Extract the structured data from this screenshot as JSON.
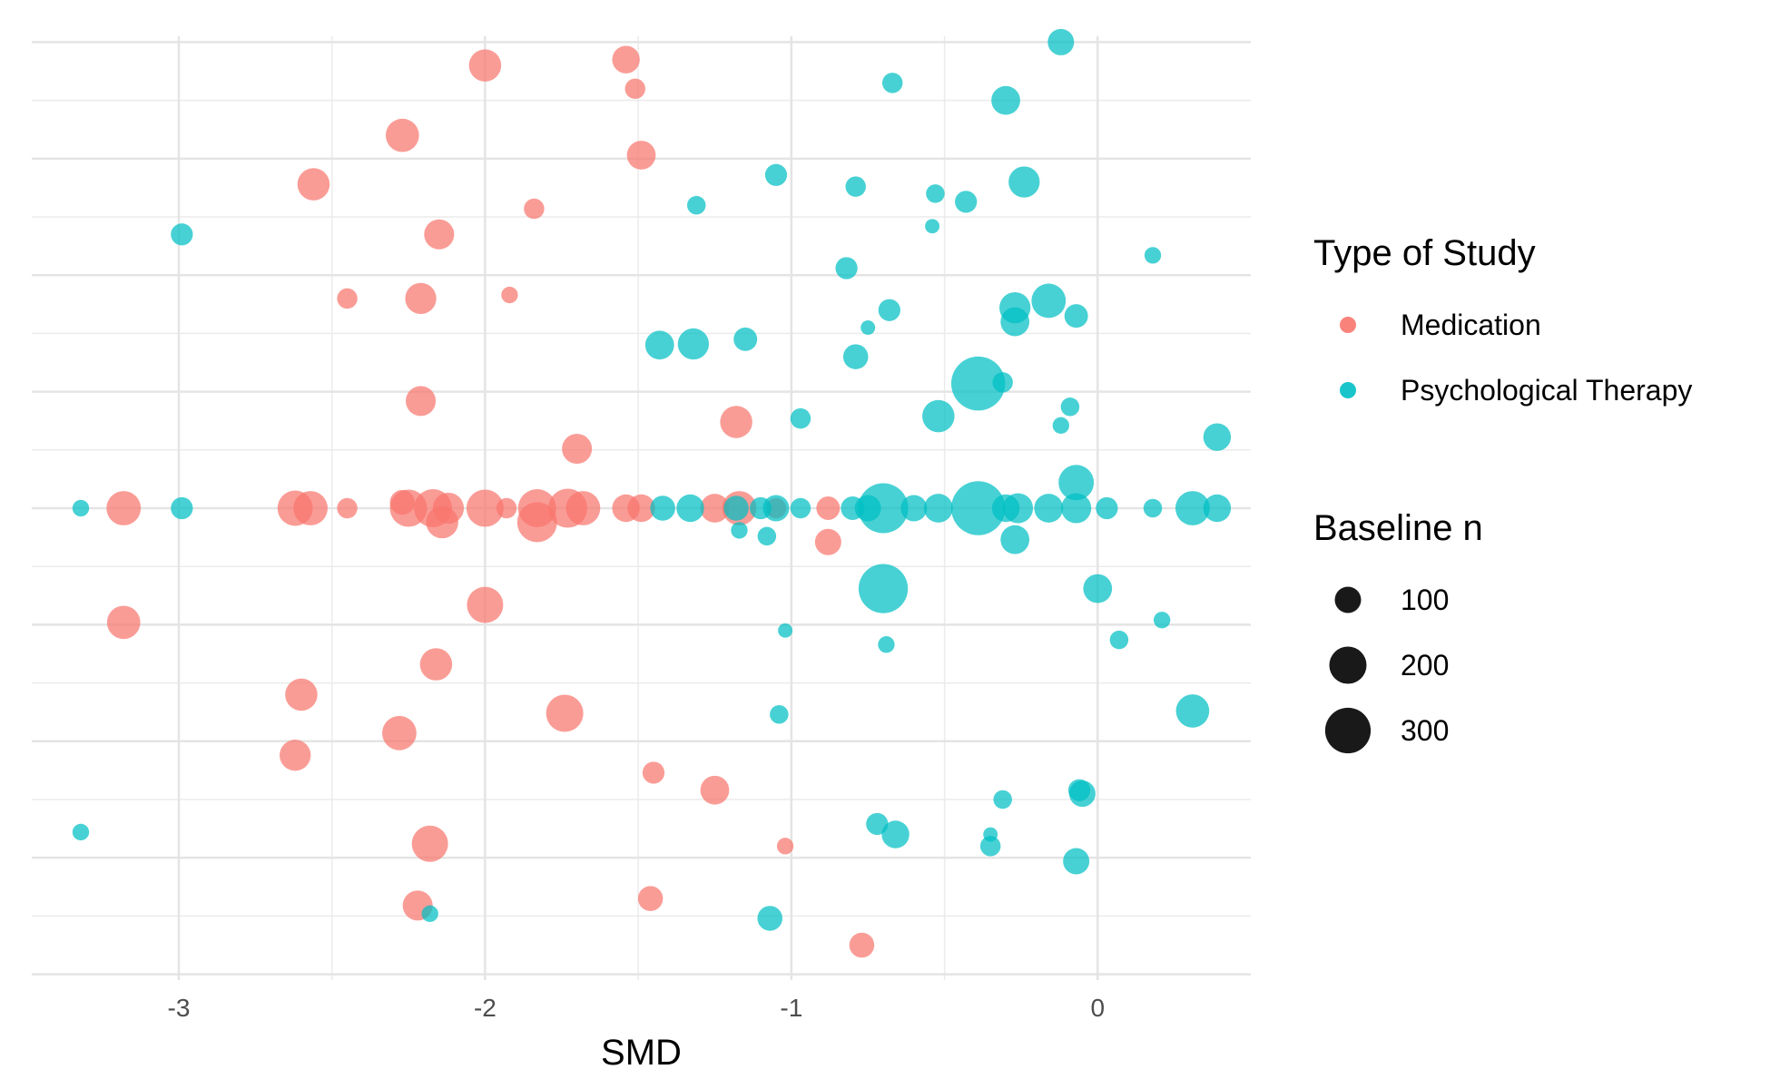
{
  "chart_data": {
    "type": "scatter",
    "xlabel": "SMD",
    "xlim": [
      -3.48,
      0.5
    ],
    "ylim": [
      -4.05,
      4.05
    ],
    "x_ticks": [
      -3,
      -2,
      -1,
      0
    ],
    "x_tick_labels": [
      "-3",
      "-2",
      "-1",
      "0"
    ],
    "y_ticks": [
      -4,
      -3,
      -2,
      -1,
      0,
      1,
      2,
      3,
      4
    ],
    "y_tick_labels": [],
    "grid": true,
    "legend_placement": "right",
    "color_legend": {
      "title": "Type of Study",
      "entries": [
        {
          "label": "Medication",
          "color": "#F8766D"
        },
        {
          "label": "Psychological Therapy",
          "color": "#00BFC4"
        }
      ]
    },
    "size_legend": {
      "title": "Baseline n",
      "entries": [
        {
          "label": "100",
          "n": 100
        },
        {
          "label": "200",
          "n": 200
        },
        {
          "label": "300",
          "n": 300
        }
      ]
    },
    "series": [
      {
        "name": "Medication",
        "color": "#F8766D",
        "points": [
          [
            -2.0,
            3.8,
            150
          ],
          [
            -1.54,
            3.85,
            110
          ],
          [
            -1.51,
            3.6,
            60
          ],
          [
            -2.27,
            3.2,
            160
          ],
          [
            -1.49,
            3.03,
            120
          ],
          [
            -2.56,
            2.78,
            150
          ],
          [
            -1.84,
            2.57,
            60
          ],
          [
            -2.15,
            2.35,
            130
          ],
          [
            -2.45,
            1.8,
            60
          ],
          [
            -2.21,
            1.8,
            140
          ],
          [
            -1.92,
            1.83,
            40
          ],
          [
            -2.21,
            0.92,
            130
          ],
          [
            -1.18,
            0.74,
            150
          ],
          [
            -1.7,
            0.51,
            130
          ],
          [
            -3.18,
            0.0,
            170
          ],
          [
            -2.62,
            0.0,
            180
          ],
          [
            -2.57,
            0.0,
            170
          ],
          [
            -2.45,
            0.0,
            60
          ],
          [
            -2.27,
            0.05,
            90
          ],
          [
            -2.25,
            0.0,
            200
          ],
          [
            -2.17,
            0.0,
            210
          ],
          [
            -2.12,
            0.0,
            140
          ],
          [
            -2.14,
            -0.12,
            150
          ],
          [
            -2.0,
            0.0,
            200
          ],
          [
            -1.93,
            0.0,
            60
          ],
          [
            -1.83,
            0.0,
            210
          ],
          [
            -1.83,
            -0.12,
            230
          ],
          [
            -1.73,
            0.0,
            220
          ],
          [
            -1.68,
            0.0,
            170
          ],
          [
            -1.54,
            0.0,
            110
          ],
          [
            -1.49,
            0.0,
            110
          ],
          [
            -1.25,
            0.0,
            120
          ],
          [
            -1.17,
            0.0,
            170
          ],
          [
            -1.05,
            0.0,
            60
          ],
          [
            -0.88,
            0.0,
            80
          ],
          [
            -0.88,
            -0.29,
            100
          ],
          [
            -3.18,
            -0.98,
            160
          ],
          [
            -2.0,
            -0.83,
            190
          ],
          [
            -2.16,
            -1.34,
            150
          ],
          [
            -2.6,
            -1.6,
            150
          ],
          [
            -1.74,
            -1.76,
            200
          ],
          [
            -2.28,
            -1.93,
            170
          ],
          [
            -2.62,
            -2.12,
            140
          ],
          [
            -1.45,
            -2.27,
            70
          ],
          [
            -1.25,
            -2.42,
            120
          ],
          [
            -2.18,
            -2.88,
            190
          ],
          [
            -1.02,
            -2.9,
            40
          ],
          [
            -2.22,
            -3.41,
            130
          ],
          [
            -1.46,
            -3.35,
            90
          ],
          [
            -0.77,
            -3.75,
            90
          ]
        ]
      },
      {
        "name": "Psychological Therapy",
        "color": "#00BFC4",
        "points": [
          [
            -0.12,
            4.0,
            100
          ],
          [
            -0.67,
            3.65,
            60
          ],
          [
            -0.3,
            3.5,
            120
          ],
          [
            -1.05,
            2.86,
            70
          ],
          [
            -0.79,
            2.76,
            60
          ],
          [
            -0.53,
            2.7,
            50
          ],
          [
            -0.43,
            2.63,
            70
          ],
          [
            -0.24,
            2.8,
            140
          ],
          [
            -1.31,
            2.6,
            50
          ],
          [
            -2.99,
            2.35,
            70
          ],
          [
            -0.54,
            2.42,
            30
          ],
          [
            0.18,
            2.17,
            40
          ],
          [
            -0.82,
            2.06,
            70
          ],
          [
            -0.68,
            1.7,
            70
          ],
          [
            -0.27,
            1.72,
            140
          ],
          [
            -0.16,
            1.78,
            170
          ],
          [
            -0.27,
            1.6,
            120
          ],
          [
            -0.07,
            1.65,
            80
          ],
          [
            -0.75,
            1.55,
            30
          ],
          [
            -1.43,
            1.4,
            120
          ],
          [
            -1.32,
            1.41,
            140
          ],
          [
            -1.15,
            1.45,
            80
          ],
          [
            -0.79,
            1.3,
            90
          ],
          [
            -0.39,
            1.07,
            420
          ],
          [
            -0.31,
            1.08,
            60
          ],
          [
            -0.09,
            0.87,
            50
          ],
          [
            -0.97,
            0.77,
            60
          ],
          [
            -0.52,
            0.79,
            150
          ],
          [
            -0.12,
            0.71,
            40
          ],
          [
            0.39,
            0.61,
            110
          ],
          [
            -3.32,
            0.0,
            40
          ],
          [
            -2.99,
            0.0,
            70
          ],
          [
            -1.42,
            0.0,
            90
          ],
          [
            -1.33,
            0.0,
            110
          ],
          [
            -1.18,
            0.0,
            90
          ],
          [
            -1.1,
            0.0,
            70
          ],
          [
            -1.05,
            0.0,
            100
          ],
          [
            -0.97,
            0.0,
            60
          ],
          [
            -0.8,
            0.0,
            80
          ],
          [
            -0.75,
            0.0,
            100
          ],
          [
            -0.7,
            0.0,
            360
          ],
          [
            -0.6,
            0.0,
            100
          ],
          [
            -0.52,
            0.0,
            120
          ],
          [
            -0.39,
            0.0,
            420
          ],
          [
            -0.3,
            0.0,
            110
          ],
          [
            -0.26,
            0.0,
            130
          ],
          [
            -0.16,
            0.0,
            120
          ],
          [
            -0.07,
            0.0,
            130
          ],
          [
            0.03,
            0.0,
            70
          ],
          [
            0.18,
            0.0,
            50
          ],
          [
            0.31,
            0.0,
            170
          ],
          [
            0.39,
            0.0,
            110
          ],
          [
            -0.07,
            0.22,
            180
          ],
          [
            -1.17,
            -0.19,
            40
          ],
          [
            -1.08,
            -0.24,
            50
          ],
          [
            -0.27,
            -0.27,
            120
          ],
          [
            -0.7,
            -0.69,
            350
          ],
          [
            0.0,
            -0.69,
            120
          ],
          [
            0.07,
            -1.13,
            50
          ],
          [
            0.21,
            -0.96,
            40
          ],
          [
            -1.02,
            -1.05,
            30
          ],
          [
            -0.69,
            -1.17,
            40
          ],
          [
            -1.04,
            -1.77,
            50
          ],
          [
            0.31,
            -1.74,
            160
          ],
          [
            -0.05,
            -2.45,
            100
          ],
          [
            -0.06,
            -2.42,
            70
          ],
          [
            -0.31,
            -2.5,
            50
          ],
          [
            -3.32,
            -2.78,
            40
          ],
          [
            -0.72,
            -2.71,
            70
          ],
          [
            -0.66,
            -2.8,
            110
          ],
          [
            -0.35,
            -2.8,
            30
          ],
          [
            -0.35,
            -2.9,
            60
          ],
          [
            -0.07,
            -3.03,
            100
          ],
          [
            -2.18,
            -3.48,
            40
          ],
          [
            -1.07,
            -3.52,
            90
          ]
        ]
      }
    ]
  }
}
